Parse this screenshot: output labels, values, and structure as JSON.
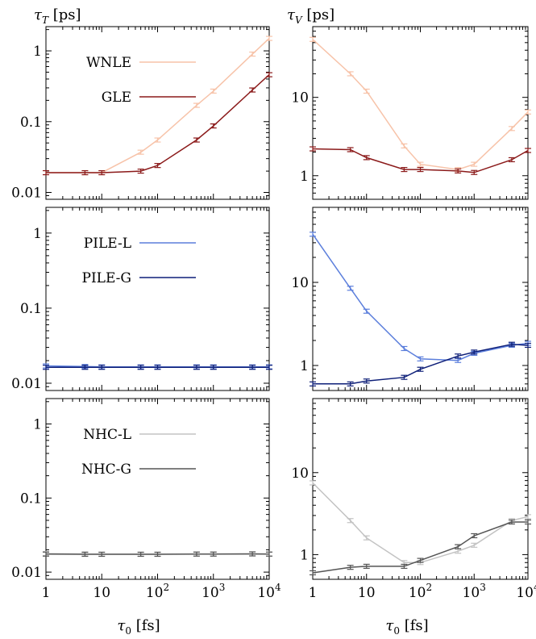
{
  "labels": {
    "left_axis_symbol": "τ",
    "left_axis_sub": "T",
    "left_axis_unit": " [ps]",
    "right_axis_symbol": "τ",
    "right_axis_sub": "V",
    "right_axis_unit": " [ps]",
    "x_axis_symbol": "τ",
    "x_axis_sub": "0",
    "x_axis_unit": " [fs]"
  },
  "x_ticks": [
    {
      "value": 1,
      "base": "1",
      "exp": ""
    },
    {
      "value": 10,
      "base": "10",
      "exp": ""
    },
    {
      "value": 100,
      "base": "10",
      "exp": "2"
    },
    {
      "value": 1000,
      "base": "10",
      "exp": "3"
    },
    {
      "value": 10000,
      "base": "10",
      "exp": "4"
    }
  ],
  "colors": {
    "WNLE": "#f7c3a9",
    "GLE": "#8b1a1a",
    "PILE-L": "#5c7fdc",
    "PILE-G": "#0e1f78",
    "NHC-L": "#c3c3c3",
    "NHC-G": "#555555"
  },
  "chart_data": [
    {
      "type": "line",
      "id": "row1-left",
      "row": 0,
      "col": 0,
      "xscale": "log",
      "yscale": "log",
      "xlim": [
        1,
        10000
      ],
      "ylim": [
        0.008,
        2.2
      ],
      "y_ticks": [
        {
          "value": 0.01,
          "label": "0.01"
        },
        {
          "value": 0.1,
          "label": "0.1"
        },
        {
          "value": 1,
          "label": "1"
        }
      ],
      "legend": [
        "WNLE",
        "GLE"
      ],
      "series": [
        {
          "name": "WNLE",
          "x": [
            1,
            5,
            10,
            50,
            100,
            500,
            1000,
            5000,
            10000
          ],
          "y": [
            0.019,
            0.019,
            0.019,
            0.037,
            0.055,
            0.17,
            0.27,
            0.9,
            1.5
          ]
        },
        {
          "name": "GLE",
          "x": [
            1,
            5,
            10,
            50,
            100,
            500,
            1000,
            5000,
            10000
          ],
          "y": [
            0.019,
            0.019,
            0.019,
            0.02,
            0.024,
            0.055,
            0.087,
            0.28,
            0.46
          ]
        }
      ]
    },
    {
      "type": "line",
      "id": "row1-right",
      "row": 0,
      "col": 1,
      "xscale": "log",
      "yscale": "log",
      "xlim": [
        1,
        10000
      ],
      "ylim": [
        0.5,
        80
      ],
      "y_ticks": [
        {
          "value": 1,
          "label": "1"
        },
        {
          "value": 10,
          "label": "10"
        }
      ],
      "legend": [],
      "series": [
        {
          "name": "WNLE",
          "x": [
            1,
            5,
            10,
            50,
            100,
            500,
            1000,
            5000,
            10000
          ],
          "y": [
            55,
            20,
            12,
            2.4,
            1.4,
            1.2,
            1.4,
            4,
            6.5
          ]
        },
        {
          "name": "GLE",
          "x": [
            1,
            5,
            10,
            50,
            100,
            500,
            1000,
            5000,
            10000
          ],
          "y": [
            2.2,
            2.15,
            1.7,
            1.2,
            1.2,
            1.15,
            1.1,
            1.6,
            2.1
          ]
        }
      ]
    },
    {
      "type": "line",
      "id": "row2-left",
      "row": 1,
      "col": 0,
      "xscale": "log",
      "yscale": "log",
      "xlim": [
        1,
        10000
      ],
      "ylim": [
        0.008,
        2.2
      ],
      "y_ticks": [
        {
          "value": 0.01,
          "label": "0.01"
        },
        {
          "value": 0.1,
          "label": "0.1"
        },
        {
          "value": 1,
          "label": "1"
        }
      ],
      "legend": [
        "PILE-L",
        "PILE-G"
      ],
      "series": [
        {
          "name": "PILE-L",
          "x": [
            1,
            5,
            10,
            50,
            100,
            500,
            1000,
            5000,
            10000
          ],
          "y": [
            0.017,
            0.0167,
            0.0165,
            0.0165,
            0.0165,
            0.0165,
            0.0165,
            0.0165,
            0.0165
          ]
        },
        {
          "name": "PILE-G",
          "x": [
            1,
            5,
            10,
            50,
            100,
            500,
            1000,
            5000,
            10000
          ],
          "y": [
            0.0163,
            0.0163,
            0.0163,
            0.0163,
            0.0163,
            0.0163,
            0.0163,
            0.0163,
            0.0163
          ]
        }
      ]
    },
    {
      "type": "line",
      "id": "row2-right",
      "row": 1,
      "col": 1,
      "xscale": "log",
      "yscale": "log",
      "xlim": [
        1,
        10000
      ],
      "ylim": [
        0.5,
        80
      ],
      "y_ticks": [
        {
          "value": 1,
          "label": "1"
        },
        {
          "value": 10,
          "label": "10"
        }
      ],
      "legend": [],
      "series": [
        {
          "name": "PILE-L",
          "x": [
            1,
            5,
            10,
            50,
            100,
            500,
            1000,
            5000,
            10000
          ],
          "y": [
            38,
            8.5,
            4.5,
            1.6,
            1.2,
            1.15,
            1.4,
            1.75,
            1.85
          ]
        },
        {
          "name": "PILE-G",
          "x": [
            1,
            5,
            10,
            50,
            100,
            500,
            1000,
            5000,
            10000
          ],
          "y": [
            0.6,
            0.6,
            0.65,
            0.72,
            0.9,
            1.3,
            1.45,
            1.8,
            1.75
          ]
        }
      ]
    },
    {
      "type": "line",
      "id": "row3-left",
      "row": 2,
      "col": 0,
      "xscale": "log",
      "yscale": "log",
      "xlim": [
        1,
        10000
      ],
      "ylim": [
        0.008,
        2.2
      ],
      "y_ticks": [
        {
          "value": 0.01,
          "label": "0.01"
        },
        {
          "value": 0.1,
          "label": "0.1"
        },
        {
          "value": 1,
          "label": "1"
        }
      ],
      "legend": [
        "NHC-L",
        "NHC-G"
      ],
      "series": [
        {
          "name": "NHC-L",
          "x": [
            1,
            5,
            10,
            50,
            100,
            500,
            1000,
            5000,
            10000
          ],
          "y": [
            0.0178,
            0.0176,
            0.0175,
            0.0175,
            0.0175,
            0.0176,
            0.0176,
            0.0177,
            0.0176
          ]
        },
        {
          "name": "NHC-G",
          "x": [
            1,
            5,
            10,
            50,
            100,
            500,
            1000,
            5000,
            10000
          ],
          "y": [
            0.0175,
            0.0174,
            0.0174,
            0.0174,
            0.0174,
            0.0175,
            0.0175,
            0.0176,
            0.0175
          ]
        }
      ]
    },
    {
      "type": "line",
      "id": "row3-right",
      "row": 2,
      "col": 1,
      "xscale": "log",
      "yscale": "log",
      "xlim": [
        1,
        10000
      ],
      "ylim": [
        0.5,
        80
      ],
      "y_ticks": [
        {
          "value": 1,
          "label": "1"
        },
        {
          "value": 10,
          "label": "10"
        }
      ],
      "legend": [],
      "series": [
        {
          "name": "NHC-L",
          "x": [
            1,
            5,
            10,
            50,
            100,
            500,
            1000,
            5000,
            10000
          ],
          "y": [
            7.5,
            2.6,
            1.6,
            0.8,
            0.8,
            1.1,
            1.3,
            2.6,
            2.9
          ]
        },
        {
          "name": "NHC-G",
          "x": [
            1,
            5,
            10,
            50,
            100,
            500,
            1000,
            5000,
            10000
          ],
          "y": [
            0.6,
            0.7,
            0.72,
            0.72,
            0.85,
            1.25,
            1.7,
            2.5,
            2.5
          ]
        }
      ]
    }
  ]
}
